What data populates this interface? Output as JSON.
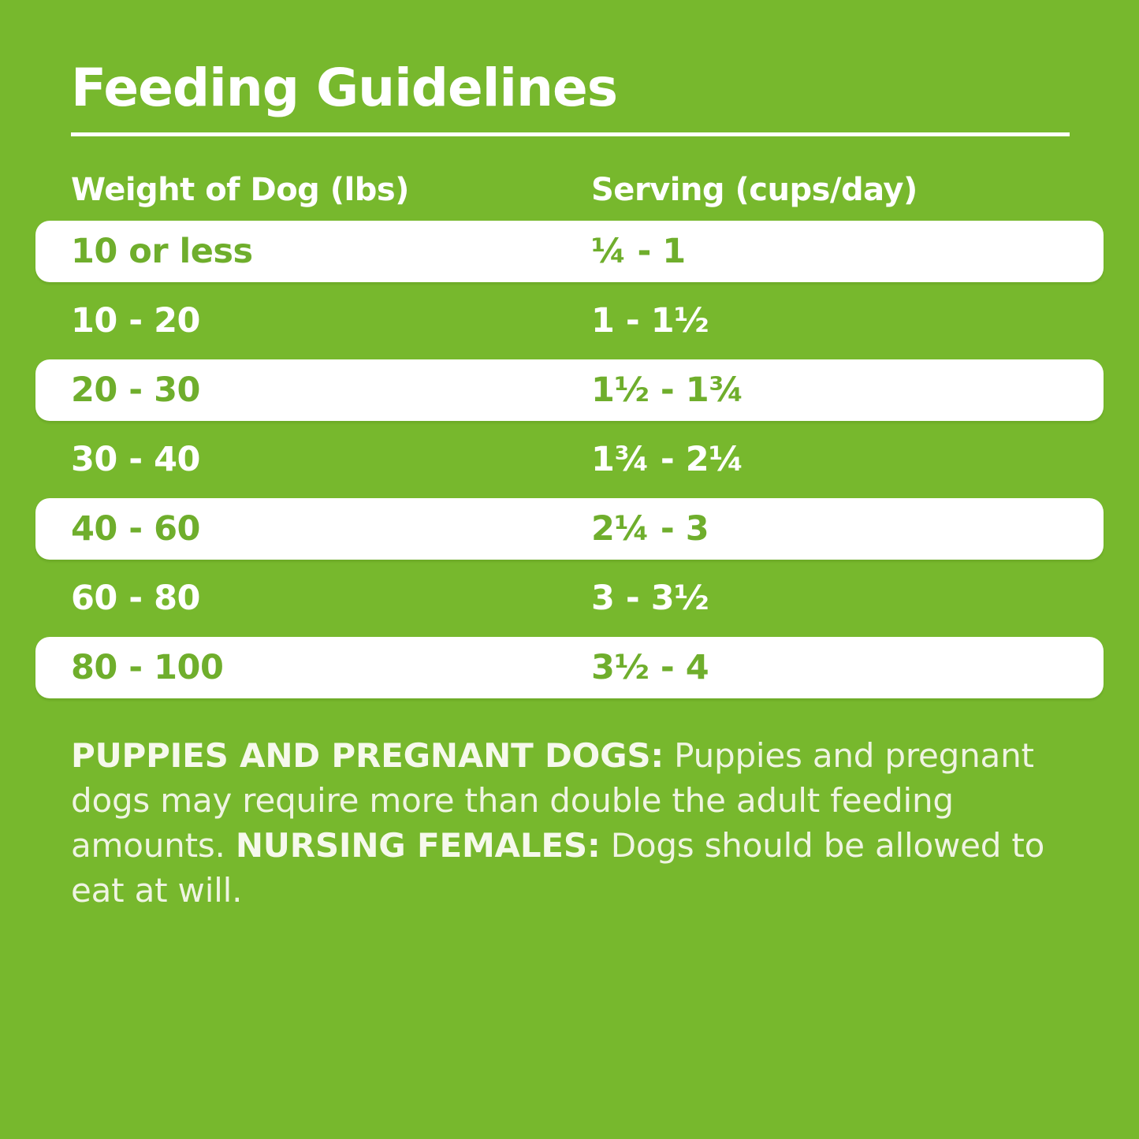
{
  "title": "Feeding Guidelines",
  "colors": {
    "background_green": "#77B82D",
    "pill_white": "#FFFFFF",
    "pill_text_green": "#6FAE2C",
    "header_text_white": "#FFFFFF",
    "note_text_offwhite": "#EFF4E2"
  },
  "table": {
    "columns": [
      "Weight of Dog (lbs)",
      "Serving (cups/day)"
    ],
    "rows": [
      {
        "weight": "10 or less",
        "serving": "¼ - 1"
      },
      {
        "weight": "10 - 20",
        "serving": "1 - 1½"
      },
      {
        "weight": "20 - 30",
        "serving": "1½ - 1¾"
      },
      {
        "weight": "30 - 40",
        "serving": "1¾ - 2¼"
      },
      {
        "weight": "40 - 60",
        "serving": "2¼ - 3"
      },
      {
        "weight": "60 - 80",
        "serving": "3 - 3½"
      },
      {
        "weight": "80 - 100",
        "serving": "3½ - 4"
      }
    ]
  },
  "note": {
    "bold1": "PUPPIES AND PREGNANT DOGS:",
    "text1": " Puppies and pregnant dogs may require more than double the adult feeding amounts. ",
    "bold2": "NURSING FEMALES:",
    "text2": " Dogs should be allowed to eat at will."
  }
}
